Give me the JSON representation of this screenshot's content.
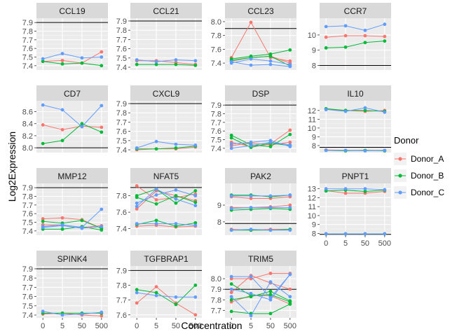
{
  "chart_data": {
    "type": "line",
    "xlabel": "Concentration",
    "ylabel": "Log2Expression",
    "x_categories": [
      "0",
      "5",
      "50",
      "500"
    ],
    "legend": {
      "title": "Donor",
      "position": "right",
      "entries": [
        {
          "name": "Donor_A",
          "color": "#F8766D"
        },
        {
          "name": "Donor_B",
          "color": "#00BA38"
        },
        {
          "name": "Donor_C",
          "color": "#619CFF"
        }
      ]
    },
    "background": "#EBEBEB",
    "strip_color": "#D9D9D9",
    "panels": [
      {
        "title": "CCL19",
        "ylim": [
          7.35,
          7.95
        ],
        "ticks": [
          "7.4",
          "7.5",
          "7.6",
          "7.7",
          "7.8",
          "7.9"
        ],
        "hline": 7.9,
        "series": [
          {
            "name": "Donor_A",
            "lines": [
              [
                7.45,
                7.46,
                7.43,
                7.56
              ]
            ]
          },
          {
            "name": "Donor_B",
            "lines": [
              [
                7.45,
                7.42,
                7.43,
                7.4
              ]
            ]
          },
          {
            "name": "Donor_C",
            "lines": [
              [
                7.48,
                7.54,
                7.49,
                7.5
              ]
            ]
          }
        ]
      },
      {
        "title": "CCL21",
        "ylim": [
          7.37,
          7.93
        ],
        "ticks": [
          "7.4",
          "7.5",
          "7.6",
          "7.7",
          "7.8",
          "7.9"
        ],
        "hline": 7.9,
        "series": [
          {
            "name": "Donor_A",
            "lines": [
              [
                7.47,
                7.47,
                7.45,
                7.43
              ]
            ]
          },
          {
            "name": "Donor_B",
            "lines": [
              [
                7.43,
                7.43,
                7.43,
                7.42
              ]
            ]
          },
          {
            "name": "Donor_C",
            "lines": [
              [
                7.48,
                7.46,
                7.48,
                7.47
              ]
            ]
          }
        ]
      },
      {
        "title": "CCL23",
        "ylim": [
          7.3,
          8.05
        ],
        "ticks": [
          "7.4",
          "7.6",
          "7.8",
          "8.0"
        ],
        "hline": 7.9,
        "series": [
          {
            "name": "Donor_A",
            "lines": [
              [
                7.48,
                7.99,
                7.48,
                7.43
              ],
              [
                7.43,
                7.48,
                7.5,
                7.4
              ]
            ]
          },
          {
            "name": "Donor_B",
            "lines": [
              [
                7.46,
                7.5,
                7.53,
                7.59
              ],
              [
                7.44,
                7.48,
                7.5,
                7.36
              ]
            ]
          },
          {
            "name": "Donor_C",
            "lines": [
              [
                7.42,
                7.37,
                7.38,
                7.35
              ],
              [
                7.4,
                7.46,
                7.43,
                7.38
              ]
            ]
          }
        ]
      },
      {
        "title": "CCR7",
        "ylim": [
          7.7,
          11.1
        ],
        "ticks": [
          "8",
          "9",
          "10"
        ],
        "hline": 8,
        "series": [
          {
            "name": "Donor_A",
            "lines": [
              [
                9.85,
                9.95,
                9.95,
                9.9
              ]
            ]
          },
          {
            "name": "Donor_B",
            "lines": [
              [
                9.15,
                9.2,
                9.5,
                9.6
              ]
            ]
          },
          {
            "name": "Donor_C",
            "lines": [
              [
                10.55,
                10.6,
                10.3,
                10.7
              ]
            ]
          }
        ]
      },
      {
        "title": "CD7",
        "ylim": [
          7.92,
          8.78
        ],
        "ticks": [
          "8.0",
          "8.2",
          "8.4",
          "8.6"
        ],
        "hline": 8.0,
        "series": [
          {
            "name": "Donor_A",
            "lines": [
              [
                8.38,
                8.3,
                8.36,
                8.34
              ]
            ]
          },
          {
            "name": "Donor_B",
            "lines": [
              [
                8.07,
                8.12,
                8.4,
                8.26
              ]
            ]
          },
          {
            "name": "Donor_C",
            "lines": [
              [
                8.71,
                8.63,
                8.35,
                8.7
              ]
            ]
          }
        ]
      },
      {
        "title": "CXCL9",
        "ylim": [
          7.37,
          7.93
        ],
        "ticks": [
          "7.4",
          "7.5",
          "7.6",
          "7.7",
          "7.8",
          "7.9"
        ],
        "hline": 7.9,
        "series": [
          {
            "name": "Donor_A",
            "lines": [
              [
                7.4,
                7.41,
                7.41,
                7.43
              ]
            ]
          },
          {
            "name": "Donor_B",
            "lines": [
              [
                7.41,
                7.41,
                7.42,
                7.44
              ]
            ]
          },
          {
            "name": "Donor_C",
            "lines": [
              [
                7.42,
                7.49,
                7.46,
                7.45
              ]
            ]
          }
        ]
      },
      {
        "title": "DSP",
        "ylim": [
          7.35,
          7.95
        ],
        "ticks": [
          "7.4",
          "7.5",
          "7.6",
          "7.7",
          "7.8",
          "7.9"
        ],
        "hline": 7.9,
        "series": [
          {
            "name": "Donor_A",
            "lines": [
              [
                7.47,
                7.42,
                7.45,
                7.61
              ],
              [
                7.43,
                7.46,
                7.44,
                7.47
              ]
            ]
          },
          {
            "name": "Donor_B",
            "lines": [
              [
                7.55,
                7.44,
                7.42,
                7.56
              ],
              [
                7.52,
                7.41,
                7.46,
                7.43
              ]
            ]
          },
          {
            "name": "Donor_C",
            "lines": [
              [
                7.45,
                7.47,
                7.49,
                7.42
              ],
              [
                7.4,
                7.43,
                7.47,
                7.44
              ]
            ]
          }
        ]
      },
      {
        "title": "IL10",
        "ylim": [
          7.2,
          13.1
        ],
        "ticks": [
          "8",
          "9",
          "10",
          "11",
          "12"
        ],
        "hline": 7.8,
        "series": [
          {
            "name": "Donor_A",
            "lines": [
              [
                12.1,
                12.0,
                11.9,
                12.0
              ],
              [
                7.5,
                7.45,
                7.45,
                7.45
              ]
            ]
          },
          {
            "name": "Donor_B",
            "lines": [
              [
                12.2,
                12.0,
                12.0,
                11.9
              ],
              [
                7.45,
                7.4,
                7.45,
                7.4
              ]
            ]
          },
          {
            "name": "Donor_C",
            "lines": [
              [
                12.1,
                11.9,
                12.3,
                11.8
              ],
              [
                7.45,
                7.45,
                7.4,
                7.45
              ]
            ]
          }
        ]
      },
      {
        "title": "MMP12",
        "ylim": [
          7.35,
          7.95
        ],
        "ticks": [
          "7.4",
          "7.5",
          "7.6",
          "7.7",
          "7.8",
          "7.9"
        ],
        "hline": 7.9,
        "series": [
          {
            "name": "Donor_A",
            "lines": [
              [
                7.54,
                7.55,
                7.53,
                7.43
              ],
              [
                7.47,
                7.47,
                7.44,
                7.46
              ]
            ]
          },
          {
            "name": "Donor_B",
            "lines": [
              [
                7.51,
                7.49,
                7.52,
                7.43
              ],
              [
                7.42,
                7.42,
                7.45,
                7.41
              ]
            ]
          },
          {
            "name": "Donor_C",
            "lines": [
              [
                7.45,
                7.47,
                7.44,
                7.65
              ],
              [
                7.44,
                7.46,
                7.43,
                7.45
              ]
            ]
          }
        ]
      },
      {
        "title": "NFAT5",
        "ylim": [
          7.32,
          7.95
        ],
        "ticks": [
          "7.4",
          "7.6",
          "7.8"
        ],
        "hline": 7.9,
        "series": [
          {
            "name": "Donor_A",
            "lines": [
              [
                7.92,
                7.75,
                7.78,
                7.82
              ],
              [
                7.64,
                7.86,
                7.8,
                7.74
              ],
              [
                7.43,
                7.44,
                7.42,
                7.43
              ]
            ]
          },
          {
            "name": "Donor_B",
            "lines": [
              [
                7.8,
                7.88,
                7.71,
                7.86
              ],
              [
                7.78,
                7.7,
                7.8,
                7.72
              ],
              [
                7.45,
                7.5,
                7.43,
                7.47
              ]
            ]
          },
          {
            "name": "Donor_C",
            "lines": [
              [
                7.71,
                7.81,
                7.87,
                7.8
              ],
              [
                7.67,
                7.88,
                7.76,
                7.68
              ],
              [
                7.46,
                7.46,
                7.46,
                7.44
              ]
            ]
          }
        ]
      },
      {
        "title": "PAK2",
        "ylim": [
          7.2,
          10.3
        ],
        "ticks": [
          "8",
          "9"
        ],
        "hline": 7.9,
        "series": [
          {
            "name": "Donor_A",
            "lines": [
              [
                9.5,
                9.4,
                9.4,
                9.5
              ],
              [
                8.85,
                8.85,
                8.9,
                9.0
              ],
              [
                7.55,
                7.5,
                7.55,
                7.55
              ]
            ]
          },
          {
            "name": "Donor_B",
            "lines": [
              [
                9.6,
                9.6,
                9.5,
                9.6
              ],
              [
                8.7,
                8.75,
                8.8,
                8.75
              ],
              [
                7.5,
                7.5,
                7.5,
                7.55
              ]
            ]
          },
          {
            "name": "Donor_C",
            "lines": [
              [
                9.55,
                9.55,
                9.55,
                9.6
              ],
              [
                8.8,
                8.85,
                8.85,
                8.85
              ],
              [
                7.5,
                7.55,
                7.5,
                7.5
              ]
            ]
          }
        ]
      },
      {
        "title": "PNPT1",
        "ylim": [
          7.8,
          13.6
        ],
        "ticks": [
          "8",
          "9",
          "10",
          "11",
          "12",
          "13"
        ],
        "hline": 7.9,
        "series": [
          {
            "name": "Donor_A",
            "lines": [
              [
                12.8,
                12.5,
                12.5,
                12.7
              ],
              [
                7.95,
                7.95,
                7.95,
                7.95
              ]
            ]
          },
          {
            "name": "Donor_B",
            "lines": [
              [
                12.75,
                12.85,
                12.7,
                12.85
              ],
              [
                7.95,
                7.95,
                7.95,
                7.95
              ]
            ]
          },
          {
            "name": "Donor_C",
            "lines": [
              [
                13.0,
                13.0,
                13.0,
                12.9
              ],
              [
                7.95,
                7.95,
                7.95,
                7.95
              ]
            ]
          }
        ]
      },
      {
        "title": "SPINK4",
        "ylim": [
          7.37,
          7.93
        ],
        "ticks": [
          "7.4",
          "7.5",
          "7.6",
          "7.7",
          "7.8",
          "7.9"
        ],
        "hline": 7.9,
        "series": [
          {
            "name": "Donor_A",
            "lines": [
              [
                7.41,
                7.42,
                7.4,
                7.39
              ]
            ]
          },
          {
            "name": "Donor_B",
            "lines": [
              [
                7.42,
                7.42,
                7.42,
                7.42
              ]
            ]
          },
          {
            "name": "Donor_C",
            "lines": [
              [
                7.44,
                7.4,
                7.41,
                7.43
              ]
            ]
          }
        ]
      },
      {
        "title": "TGFBRAP1",
        "ylim": [
          7.58,
          7.93
        ],
        "ticks": [
          "7.6",
          "7.7",
          "7.8",
          "7.9"
        ],
        "hline": 7.9,
        "series": [
          {
            "name": "Donor_A",
            "lines": [
              [
                7.68,
                7.79,
                7.68,
                7.6
              ]
            ]
          },
          {
            "name": "Donor_B",
            "lines": [
              [
                7.77,
                7.75,
                7.67,
                7.8
              ]
            ]
          },
          {
            "name": "Donor_C",
            "lines": [
              [
                7.75,
                7.73,
                7.72,
                7.72
              ]
            ]
          }
        ]
      },
      {
        "title": "TRIM5",
        "ylim": [
          7.63,
          8.12
        ],
        "ticks": [
          "7.7",
          "7.8",
          "7.9",
          "8.0"
        ],
        "hline": 7.9,
        "series": [
          {
            "name": "Donor_A",
            "lines": [
              [
                8.0,
                8.0,
                8.05,
                8.05
              ],
              [
                7.87,
                8.03,
                7.96,
                7.9
              ],
              [
                7.78,
                7.84,
                7.84,
                7.76
              ]
            ]
          },
          {
            "name": "Donor_B",
            "lines": [
              [
                7.95,
                7.84,
                7.85,
                7.78
              ],
              [
                7.8,
                7.83,
                7.88,
                7.79
              ],
              [
                7.69,
                7.67,
                7.67,
                7.76
              ]
            ]
          },
          {
            "name": "Donor_C",
            "lines": [
              [
                8.02,
                8.02,
                7.82,
                8.04
              ],
              [
                7.9,
                7.86,
                7.8,
                8.04
              ],
              [
                7.83,
                7.65,
                7.97,
                7.83
              ]
            ]
          }
        ]
      }
    ]
  }
}
